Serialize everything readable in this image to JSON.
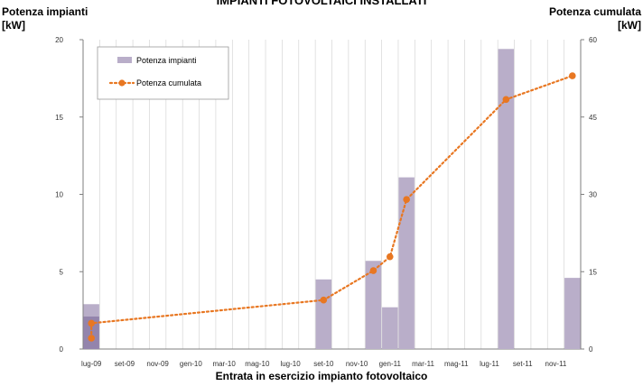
{
  "chart_data": {
    "type": "bar",
    "title": "IMPIANTI FOTOVOLTAICI INSTALLATI",
    "ylabel_left": [
      "Potenza impianti",
      "[kW]"
    ],
    "ylabel_right": [
      "Potenza cumulata",
      "[kW]"
    ],
    "xlabel": "Entrata in esercizio impianto fotovoltaico",
    "ylim_left": [
      0,
      20
    ],
    "ylim_right": [
      0,
      60
    ],
    "y_ticks_left": [
      "0",
      "5",
      "10",
      "15",
      "20"
    ],
    "y_ticks_right": [
      "0",
      "15",
      "30",
      "45",
      "60"
    ],
    "x_ticks": [
      "lug-09",
      "set-09",
      "nov-09",
      "gen-10",
      "mar-10",
      "mag-10",
      "lug-10",
      "set-10",
      "nov-10",
      "gen-11",
      "mar-11",
      "mag-11",
      "lug-11",
      "set-11",
      "nov-11"
    ],
    "grid": true,
    "legend_position": "top-left",
    "series": [
      {
        "name": "Potenza impianti",
        "type": "bar",
        "axis": "left",
        "color": "#b9aec9",
        "points": [
          {
            "x": "lug-09",
            "y": 2.9
          },
          {
            "x": "lug-09",
            "y": 2.1
          },
          {
            "x": "set-10",
            "y": 4.5
          },
          {
            "x": "dic-10",
            "y": 5.7
          },
          {
            "x": "gen-11",
            "y": 2.7
          },
          {
            "x": "feb-11",
            "y": 11.1
          },
          {
            "x": "ago-11",
            "y": 19.4
          },
          {
            "x": "dic-11",
            "y": 4.6
          }
        ]
      },
      {
        "name": "Potenza cumulata",
        "type": "line",
        "axis": "right",
        "color": "#e87722",
        "points": [
          {
            "x": "lug-09",
            "y": 2.1
          },
          {
            "x": "lug-09",
            "y": 5.0
          },
          {
            "x": "set-10",
            "y": 9.5
          },
          {
            "x": "dic-10",
            "y": 15.2
          },
          {
            "x": "gen-11",
            "y": 17.9
          },
          {
            "x": "feb-11",
            "y": 29.0
          },
          {
            "x": "ago-11",
            "y": 48.4
          },
          {
            "x": "dic-11",
            "y": 53.0
          }
        ]
      }
    ]
  }
}
